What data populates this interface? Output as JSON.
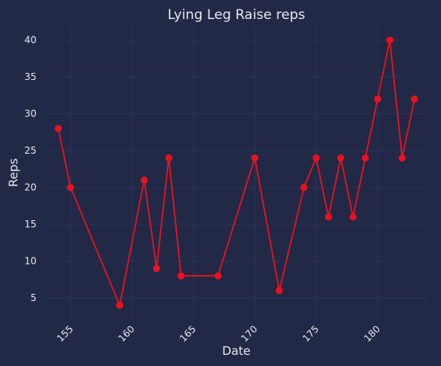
{
  "colors": {
    "background": "#212946",
    "grid": "#2a3459",
    "series": "#e8121f",
    "text": "#e8e8ee"
  },
  "chart_data": {
    "type": "line",
    "title": "Lying Leg Raise reps",
    "xlabel": "Date",
    "ylabel": "Reps",
    "grid": true,
    "xlim": [
      153,
      184
    ],
    "ylim": [
      2,
      42
    ],
    "x_ticks": [
      155,
      160,
      165,
      170,
      175,
      180
    ],
    "y_ticks": [
      5,
      10,
      15,
      20,
      25,
      30,
      35,
      40
    ],
    "x_tick_rotation": "45-degree",
    "series": [
      {
        "marker": "circle",
        "x": [
          154,
          155,
          159,
          161,
          162,
          163,
          164,
          167,
          170,
          172,
          174,
          175,
          176,
          177,
          178,
          179,
          180,
          181,
          182,
          183
        ],
        "y": [
          28,
          20,
          4,
          21,
          9,
          24,
          8,
          8,
          24,
          6,
          20,
          24,
          16,
          24,
          16,
          24,
          32,
          40,
          24,
          32
        ]
      }
    ]
  }
}
